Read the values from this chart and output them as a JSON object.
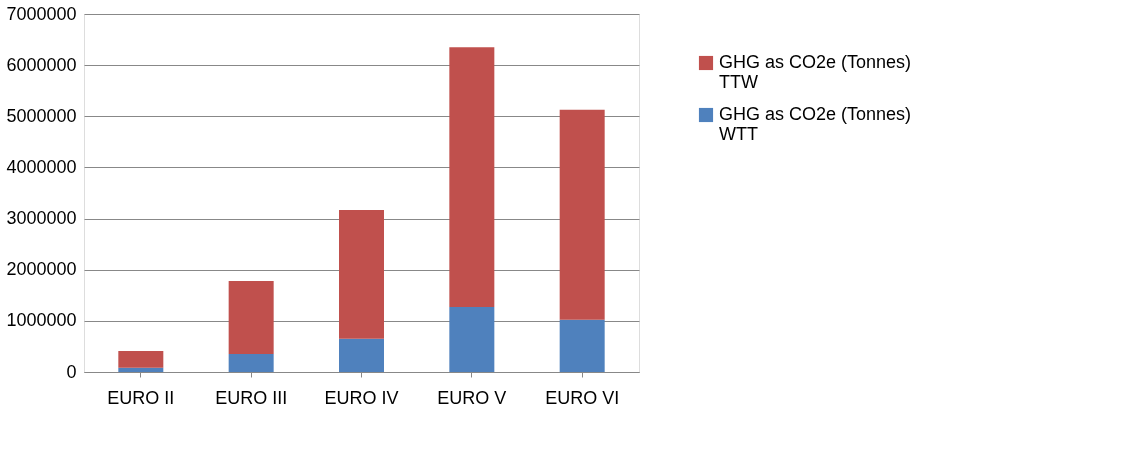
{
  "chart_data": {
    "type": "bar",
    "stacked": true,
    "categories": [
      "EURO II",
      "EURO III",
      "EURO IV",
      "EURO V",
      "EURO VI"
    ],
    "series": [
      {
        "name": "GHG as CO2e (Tonnes) WTT",
        "color": "#4f81bd",
        "values": [
          83000,
          350000,
          650000,
          1270000,
          1020000
        ]
      },
      {
        "name": "GHG as CO2e (Tonnes) TTW",
        "color": "#c0504d",
        "values": [
          330000,
          1430000,
          2520000,
          5080000,
          4110000
        ]
      }
    ],
    "ylim": [
      0,
      7000000
    ],
    "yticks": [
      0,
      1000000,
      2000000,
      3000000,
      4000000,
      5000000,
      6000000,
      7000000
    ],
    "grid": "y",
    "legend": "right"
  }
}
